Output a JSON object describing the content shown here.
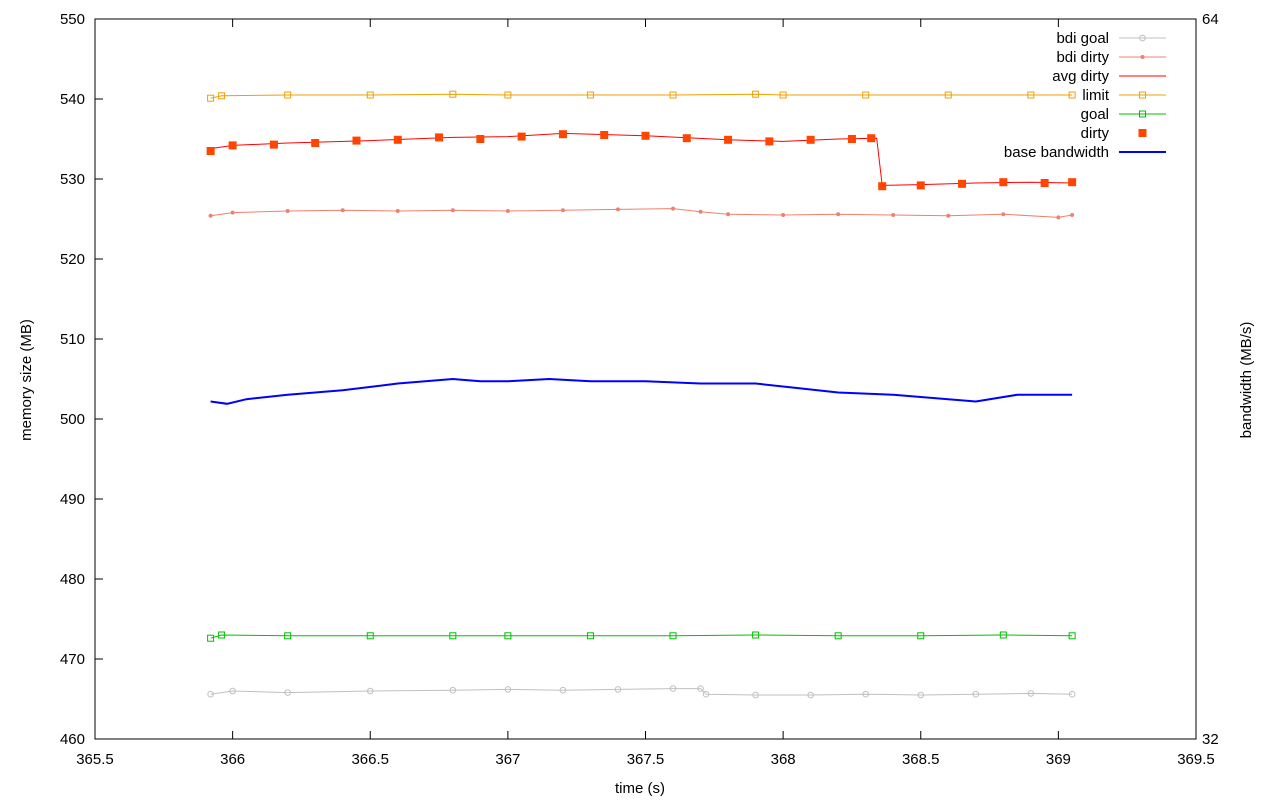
{
  "chart_data": {
    "type": "line",
    "xlabel": "time (s)",
    "ylabel_left": "memory size (MB)",
    "ylabel_right": "bandwidth (MB/s)",
    "xlim": [
      365.5,
      369.5
    ],
    "ylim_left": [
      460,
      550
    ],
    "ylim_right": [
      32,
      64
    ],
    "x_ticks": [
      "365.5",
      "366",
      "366.5",
      "367",
      "367.5",
      "368",
      "368.5",
      "369",
      "369.5"
    ],
    "y_ticks_left": [
      "460",
      "470",
      "480",
      "490",
      "500",
      "510",
      "520",
      "530",
      "540",
      "550"
    ],
    "y_ticks_right": [
      "32",
      "64"
    ],
    "grid": false,
    "legend_position": "top-right",
    "series": [
      {
        "name": "bdi goal",
        "color": "#c0c0c0",
        "style": "line-circles",
        "x": [
          365.92,
          366.0,
          366.2,
          366.5,
          366.8,
          367.0,
          367.2,
          367.4,
          367.6,
          367.7,
          367.72,
          367.9,
          368.1,
          368.3,
          368.5,
          368.7,
          368.9,
          369.05
        ],
        "y": [
          465.6,
          466.0,
          465.8,
          466.0,
          466.1,
          466.2,
          466.1,
          466.2,
          466.3,
          466.3,
          465.6,
          465.5,
          465.5,
          465.6,
          465.5,
          465.6,
          465.7,
          465.6
        ]
      },
      {
        "name": "bdi dirty",
        "color": "#f08070",
        "style": "line-dots",
        "x": [
          365.92,
          366.0,
          366.2,
          366.4,
          366.6,
          366.8,
          367.0,
          367.2,
          367.4,
          367.6,
          367.7,
          367.8,
          368.0,
          368.2,
          368.4,
          368.6,
          368.8,
          369.0,
          369.05
        ],
        "y": [
          525.4,
          525.8,
          526.0,
          526.1,
          526.0,
          526.1,
          526.0,
          526.1,
          526.2,
          526.3,
          525.9,
          525.6,
          525.5,
          525.6,
          525.5,
          525.4,
          525.6,
          525.2,
          525.5
        ]
      },
      {
        "name": "avg dirty",
        "color": "#ff0000",
        "style": "line",
        "x": [
          365.92,
          366.0,
          366.2,
          366.5,
          366.8,
          367.0,
          367.2,
          367.5,
          367.8,
          368.0,
          368.2,
          368.34,
          368.36,
          368.5,
          368.7,
          368.9,
          369.05
        ],
        "y": [
          533.8,
          534.2,
          534.5,
          534.8,
          535.2,
          535.3,
          535.7,
          535.4,
          534.9,
          534.7,
          535.0,
          535.1,
          529.2,
          529.3,
          529.5,
          529.6,
          529.5
        ]
      },
      {
        "name": "limit",
        "color": "#f0a000",
        "style": "line-squares",
        "x": [
          365.92,
          365.96,
          366.2,
          366.5,
          366.8,
          367.0,
          367.3,
          367.6,
          367.9,
          368.0,
          368.3,
          368.6,
          368.9,
          369.05
        ],
        "y": [
          540.1,
          540.4,
          540.5,
          540.5,
          540.6,
          540.5,
          540.5,
          540.5,
          540.6,
          540.5,
          540.5,
          540.5,
          540.5,
          540.5
        ]
      },
      {
        "name": "goal",
        "color": "#00c000",
        "style": "line-squares",
        "x": [
          365.92,
          365.96,
          366.2,
          366.5,
          366.8,
          367.0,
          367.3,
          367.6,
          367.9,
          368.2,
          368.5,
          368.8,
          369.05
        ],
        "y": [
          472.6,
          473.0,
          472.9,
          472.9,
          472.9,
          472.9,
          472.9,
          472.9,
          473.0,
          472.9,
          472.9,
          473.0,
          472.9
        ]
      },
      {
        "name": "dirty",
        "color": "#ff4500",
        "style": "filled-squares",
        "x": [
          365.92,
          366.0,
          366.15,
          366.3,
          366.45,
          366.6,
          366.75,
          366.9,
          367.05,
          367.2,
          367.35,
          367.5,
          367.65,
          367.8,
          367.95,
          368.1,
          368.25,
          368.32,
          368.36,
          368.5,
          368.65,
          368.8,
          368.95,
          369.05
        ],
        "y": [
          533.5,
          534.2,
          534.3,
          534.5,
          534.8,
          534.9,
          535.2,
          535.0,
          535.3,
          535.6,
          535.5,
          535.4,
          535.1,
          534.9,
          534.7,
          534.9,
          535.0,
          535.1,
          529.1,
          529.2,
          529.4,
          529.6,
          529.5,
          529.6
        ]
      },
      {
        "name": "base bandwidth",
        "color": "#0000ff",
        "style": "line-thick",
        "axis": "right",
        "x": [
          365.92,
          365.98,
          366.05,
          366.2,
          366.4,
          366.6,
          366.8,
          366.9,
          367.0,
          367.15,
          367.3,
          367.5,
          367.7,
          367.9,
          368.05,
          368.2,
          368.4,
          368.6,
          368.7,
          368.85,
          369.05
        ],
        "y": [
          47.0,
          46.9,
          47.1,
          47.3,
          47.5,
          47.8,
          48.0,
          47.9,
          47.9,
          48.0,
          47.9,
          47.9,
          47.8,
          47.8,
          47.6,
          47.4,
          47.3,
          47.1,
          47.0,
          47.3,
          47.3
        ]
      }
    ]
  }
}
